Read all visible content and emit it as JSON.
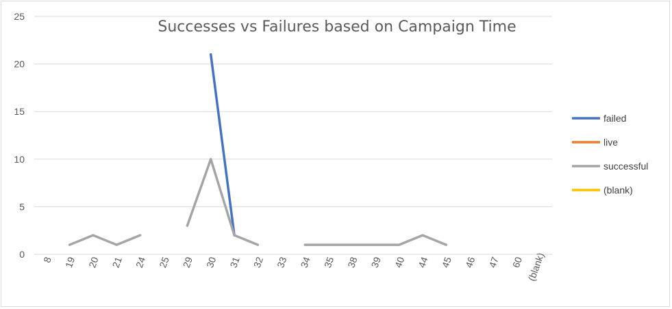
{
  "chart_data": {
    "type": "line",
    "title": "Successes vs Failures based on Campaign Time",
    "xlabel": "",
    "ylabel": "",
    "ylim": [
      0,
      25
    ],
    "yticks": [
      0,
      5,
      10,
      15,
      20,
      25
    ],
    "grid": true,
    "legend_position": "right",
    "categories": [
      "8",
      "19",
      "20",
      "21",
      "24",
      "25",
      "29",
      "30",
      "31",
      "32",
      "33",
      "34",
      "35",
      "38",
      "39",
      "40",
      "44",
      "45",
      "46",
      "47",
      "60",
      "(blank)"
    ],
    "series": [
      {
        "name": "failed",
        "color": "#4472c4",
        "values": [
          null,
          null,
          null,
          null,
          null,
          null,
          null,
          21,
          2,
          null,
          null,
          null,
          null,
          null,
          null,
          null,
          null,
          null,
          null,
          null,
          null,
          null
        ]
      },
      {
        "name": "live",
        "color": "#ed7d31",
        "values": [
          null,
          null,
          null,
          null,
          null,
          null,
          null,
          null,
          null,
          null,
          null,
          null,
          null,
          null,
          null,
          null,
          null,
          null,
          null,
          null,
          null,
          null
        ]
      },
      {
        "name": "successful",
        "color": "#a5a5a5",
        "values": [
          null,
          1,
          2,
          1,
          2,
          null,
          3,
          10,
          2,
          1,
          null,
          1,
          1,
          1,
          1,
          1,
          2,
          1,
          null,
          null,
          null,
          null
        ]
      },
      {
        "name": "(blank)",
        "color": "#ffc000",
        "values": [
          null,
          null,
          null,
          null,
          null,
          null,
          null,
          null,
          null,
          null,
          null,
          null,
          null,
          null,
          null,
          null,
          null,
          null,
          null,
          null,
          null,
          null
        ]
      }
    ]
  }
}
